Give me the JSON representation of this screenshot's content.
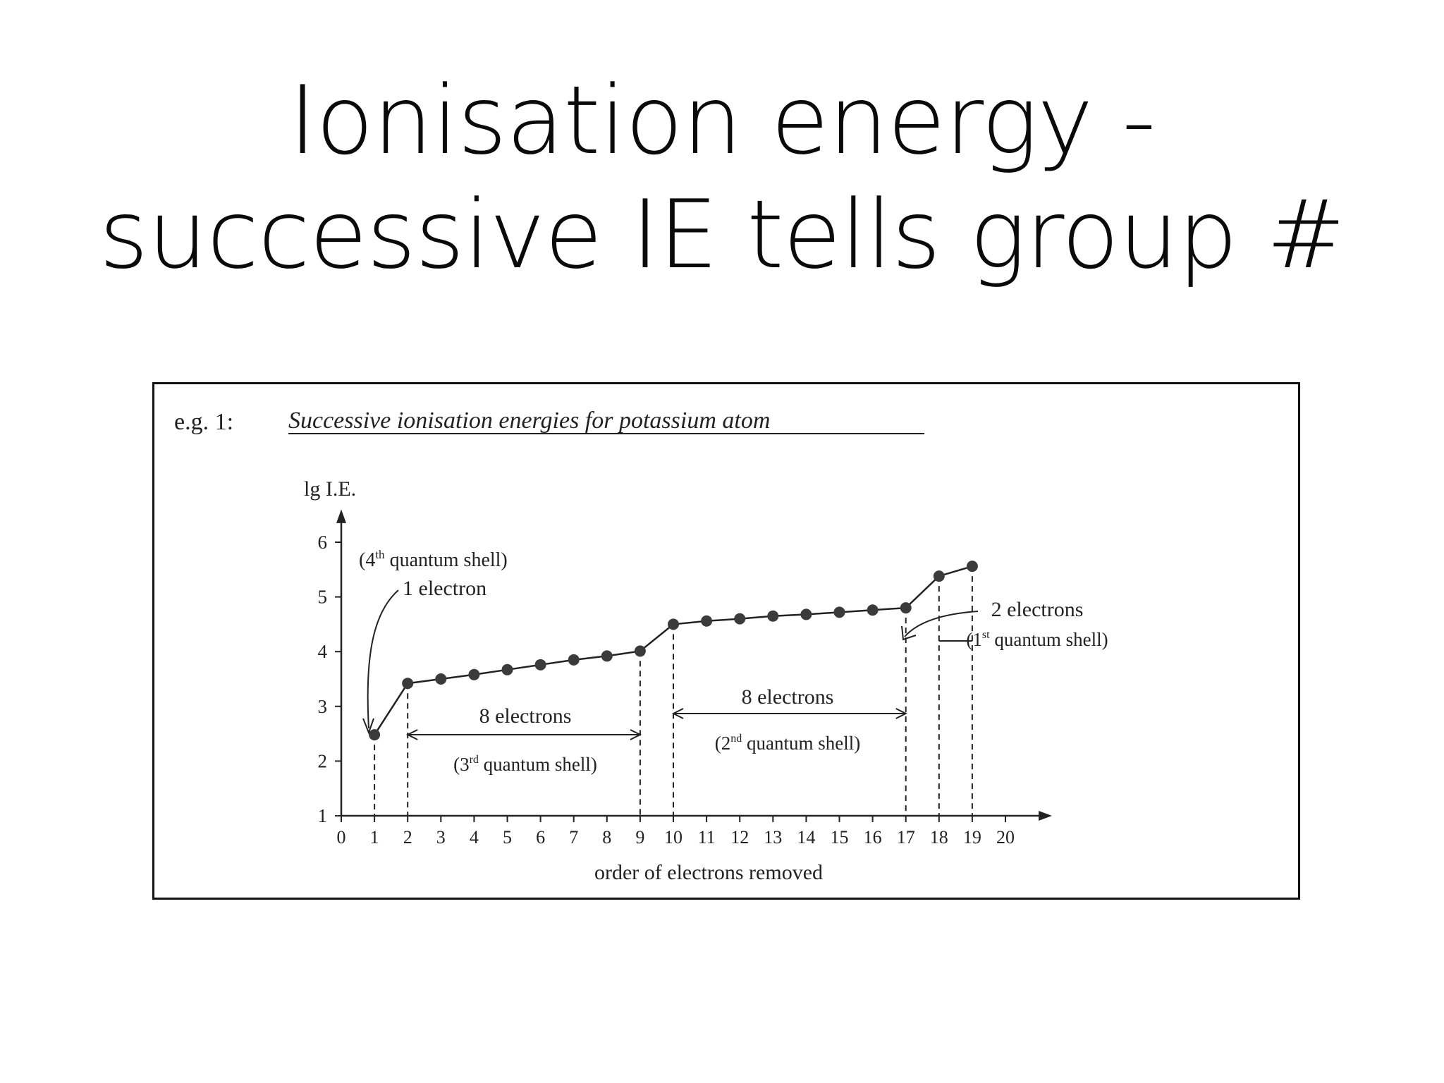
{
  "slide": {
    "title_line1": "Ionisation energy -",
    "title_line2": "successive IE tells group #"
  },
  "figure": {
    "example_label": "e.g. 1:",
    "caption": "Successive ionisation energies for potassium atom"
  },
  "chart_data": {
    "type": "line",
    "title": "Successive ionisation energies for potassium atom",
    "ylabel": "lg I.E.",
    "xlabel": "order of electrons removed",
    "xlim": [
      0,
      20
    ],
    "ylim": [
      1,
      6
    ],
    "x_ticks": [
      0,
      1,
      2,
      3,
      4,
      5,
      6,
      7,
      8,
      9,
      10,
      11,
      12,
      13,
      14,
      15,
      16,
      17,
      18,
      19,
      20
    ],
    "y_ticks": [
      1,
      2,
      3,
      4,
      5,
      6
    ],
    "grid": false,
    "legend": "none",
    "series": [
      {
        "x": [
          1,
          2,
          3,
          4,
          5,
          6,
          7,
          8,
          9,
          10,
          11,
          12,
          13,
          14,
          15,
          16,
          17,
          18,
          19
        ],
        "y": [
          2.48,
          3.42,
          3.5,
          3.58,
          3.67,
          3.76,
          3.85,
          3.92,
          4.01,
          4.5,
          4.56,
          4.6,
          4.65,
          4.68,
          4.72,
          4.76,
          4.8,
          5.38,
          5.56
        ]
      }
    ],
    "annotations": {
      "shell4_line1": "(4",
      "shell4_sup": "th",
      "shell4_line1_rest": " quantum shell)",
      "shell4_line2": "1 electron",
      "shell3_count": "8 electrons",
      "shell3_pre": "(3",
      "shell3_sup": "rd",
      "shell3_rest": " quantum shell)",
      "shell2_count": "8 electrons",
      "shell2_pre": "(2",
      "shell2_sup": "nd",
      "shell2_rest": " quantum shell)",
      "shell1_count": "2 electrons",
      "shell1_pre": "(1",
      "shell1_sup": "st",
      "shell1_rest": " quantum shell)"
    }
  }
}
